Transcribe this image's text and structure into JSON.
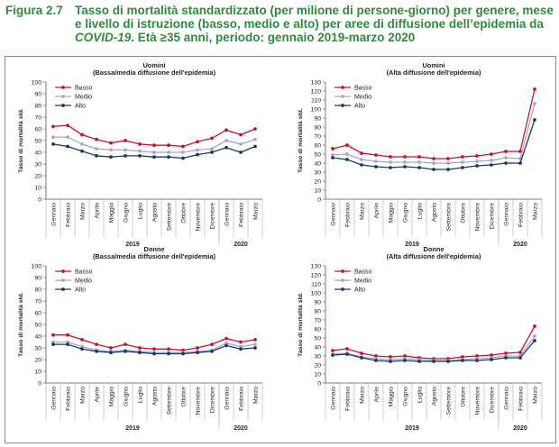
{
  "figure": {
    "number": "Figura 2.7",
    "title_part1": "Tasso di mortalità standardizzato (per milione di persone-giorno) per genere, mese e livello di istruzione (basso, medio e alto) per aree di diffusione dell’epidemia da ",
    "title_italic": "COVID-19",
    "title_part2": ". Età ≥35 anni, periodo: gennaio 2019-marzo 2020"
  },
  "colors": {
    "Basso": "#c8102e",
    "Medio": "#a8a3d4",
    "Alto": "#1b3a57"
  },
  "chart_data": [
    {
      "type": "line",
      "title": "Uomini",
      "subtitle": "(Bassa/media diffusione dell'epidemia)",
      "ylabel": "Tasso di mortalità std.",
      "ylim": [
        0,
        100
      ],
      "ystep": 10,
      "categories": [
        "Gennaio",
        "Febbraio",
        "Marzo",
        "Aprile",
        "Maggio",
        "Giugno",
        "Luglio",
        "Agosto",
        "Settembre",
        "Ottobre",
        "Novembre",
        "Dicembre",
        "Gennaio",
        "Febbraio",
        "Marzo"
      ],
      "years": [
        "2019",
        "2020"
      ],
      "legend": "top-left",
      "grid": false,
      "series": [
        {
          "name": "Basso",
          "values": [
            62,
            63,
            55,
            51,
            48,
            50,
            47,
            46,
            46,
            45,
            49,
            52,
            59,
            55,
            60
          ]
        },
        {
          "name": "Medio",
          "values": [
            53,
            53,
            47,
            43,
            42,
            42,
            41,
            40,
            40,
            40,
            42,
            43,
            50,
            47,
            51
          ]
        },
        {
          "name": "Alto",
          "values": [
            47,
            45,
            41,
            37,
            36,
            37,
            37,
            36,
            36,
            35,
            38,
            40,
            44,
            40,
            45
          ]
        }
      ]
    },
    {
      "type": "line",
      "title": "Uomini",
      "subtitle": "(Alta diffusione dell'epidemia)",
      "ylabel": "Tasso di mortalità std.",
      "ylim": [
        0,
        130
      ],
      "ystep": 10,
      "categories": [
        "Gennaio",
        "Febbraio",
        "Marzo",
        "Aprile",
        "Maggio",
        "Giugno",
        "Luglio",
        "Agosto",
        "Settembre",
        "Ottobre",
        "Novembre",
        "Dicembre",
        "Gennaio",
        "Febbraio",
        "Marzo"
      ],
      "years": [
        "2019",
        "2020"
      ],
      "legend": "top-left",
      "grid": false,
      "series": [
        {
          "name": "Basso",
          "values": [
            56,
            60,
            51,
            49,
            47,
            47,
            47,
            45,
            45,
            47,
            48,
            50,
            53,
            53,
            122
          ]
        },
        {
          "name": "Medio",
          "values": [
            49,
            50,
            44,
            42,
            41,
            41,
            41,
            40,
            40,
            41,
            42,
            43,
            46,
            45,
            106
          ]
        },
        {
          "name": "Alto",
          "values": [
            46,
            44,
            38,
            36,
            35,
            36,
            35,
            33,
            33,
            35,
            37,
            38,
            40,
            40,
            88
          ]
        }
      ]
    },
    {
      "type": "line",
      "title": "Donne",
      "subtitle": "(Bassa/media diffusione dell'epidemia)",
      "ylabel": "Tasso di mortalità std.",
      "ylim": [
        0,
        100
      ],
      "ystep": 10,
      "categories": [
        "Gennaio",
        "Febbraio",
        "Marzo",
        "Aprile",
        "Maggio",
        "Giugno",
        "Luglio",
        "Agosto",
        "Settembre",
        "Ottobre",
        "Novembre",
        "Dicembre",
        "Gennaio",
        "Febbraio",
        "Marzo"
      ],
      "years": [
        "2019",
        "2020"
      ],
      "legend": "top-left",
      "grid": false,
      "series": [
        {
          "name": "Basso",
          "values": [
            41,
            41,
            37,
            33,
            30,
            33,
            30,
            29,
            29,
            28,
            30,
            33,
            38,
            35,
            37
          ]
        },
        {
          "name": "Medio",
          "values": [
            35,
            35,
            31,
            28,
            27,
            28,
            27,
            26,
            26,
            26,
            27,
            28,
            34,
            31,
            33
          ]
        },
        {
          "name": "Alto",
          "values": [
            33,
            33,
            29,
            27,
            26,
            27,
            26,
            25,
            25,
            25,
            26,
            27,
            32,
            29,
            30
          ]
        }
      ]
    },
    {
      "type": "line",
      "title": "Donne",
      "subtitle": "(Alta diffusione dell'epidemia)",
      "ylabel": "Tasso di mortalità std.",
      "ylim": [
        0,
        130
      ],
      "ystep": 10,
      "categories": [
        "Gennaio",
        "Febbraio",
        "Marzo",
        "Aprile",
        "Maggio",
        "Giugno",
        "Luglio",
        "Agosto",
        "Settembre",
        "Ottobre",
        "Novembre",
        "Dicembre",
        "Gennaio",
        "Febbraio",
        "Marzo"
      ],
      "years": [
        "2019",
        "2020"
      ],
      "legend": "top-left",
      "grid": false,
      "series": [
        {
          "name": "Basso",
          "values": [
            36,
            38,
            33,
            30,
            29,
            30,
            28,
            27,
            27,
            29,
            30,
            31,
            33,
            34,
            63
          ]
        },
        {
          "name": "Medio",
          "values": [
            32,
            33,
            29,
            27,
            26,
            27,
            26,
            25,
            25,
            26,
            27,
            28,
            30,
            30,
            52
          ]
        },
        {
          "name": "Alto",
          "values": [
            31,
            32,
            28,
            25,
            24,
            25,
            24,
            24,
            24,
            25,
            25,
            26,
            28,
            28,
            47
          ]
        }
      ]
    }
  ]
}
